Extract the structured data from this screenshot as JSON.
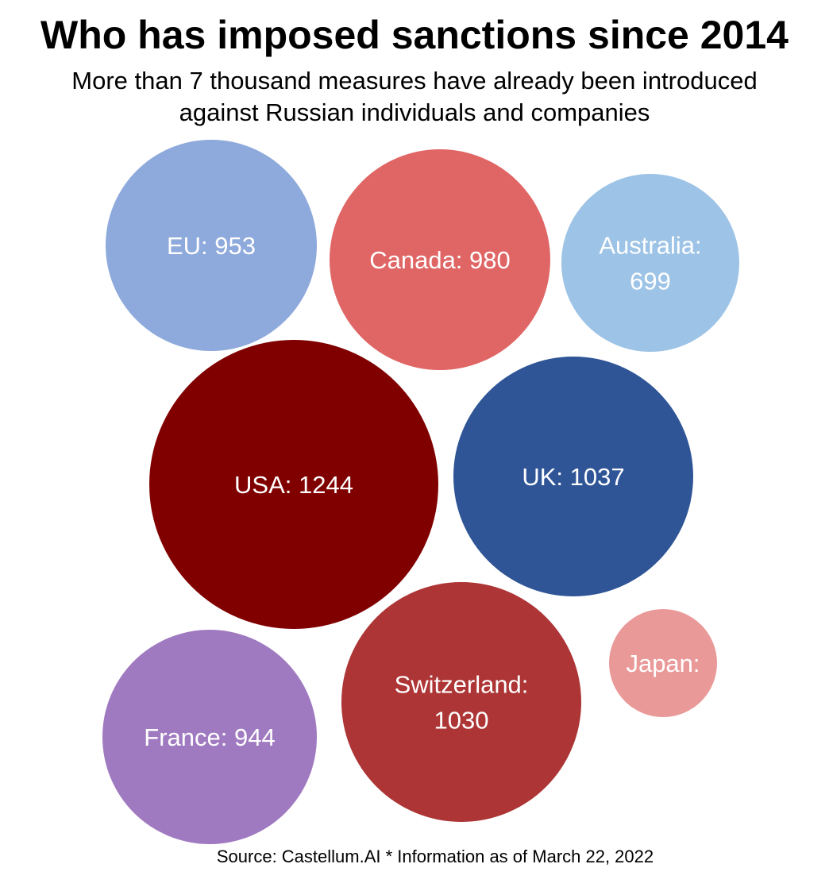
{
  "header": {
    "title": "Who has imposed sanctions since 2014",
    "subtitle_line1": "More than 7 thousand measures have already been introduced",
    "subtitle_line2": "against Russian individuals and companies"
  },
  "footer": {
    "source": "Source: Castellum.AI * Information as of March 22, 2022"
  },
  "chart_data": {
    "type": "bubble",
    "title": "Who has imposed sanctions since 2014",
    "subtitle": "More than 7 thousand measures have already been introduced against Russian individuals and companies",
    "legend": "none",
    "grid": false,
    "series": [
      {
        "name": "EU",
        "label": "EU: 953",
        "value": 953,
        "color": "#8EA9DB"
      },
      {
        "name": "Canada",
        "label": "Canada: 980",
        "value": 980,
        "color": "#E06666"
      },
      {
        "name": "Australia",
        "label": "Australia: 699",
        "value": 699,
        "color": "#9DC3E6"
      },
      {
        "name": "USA",
        "label": "USA: 1244",
        "value": 1244,
        "color": "#800000"
      },
      {
        "name": "UK",
        "label": "UK: 1037",
        "value": 1037,
        "color": "#2F5597"
      },
      {
        "name": "Japan",
        "label": "Japan:",
        "value": null,
        "color": "#EA9999"
      },
      {
        "name": "France",
        "label": "France: 944",
        "value": 944,
        "color": "#A07AC0"
      },
      {
        "name": "Switzerland",
        "label": "Switzerland: 1030",
        "value": 1030,
        "color": "#AD3535"
      }
    ]
  }
}
